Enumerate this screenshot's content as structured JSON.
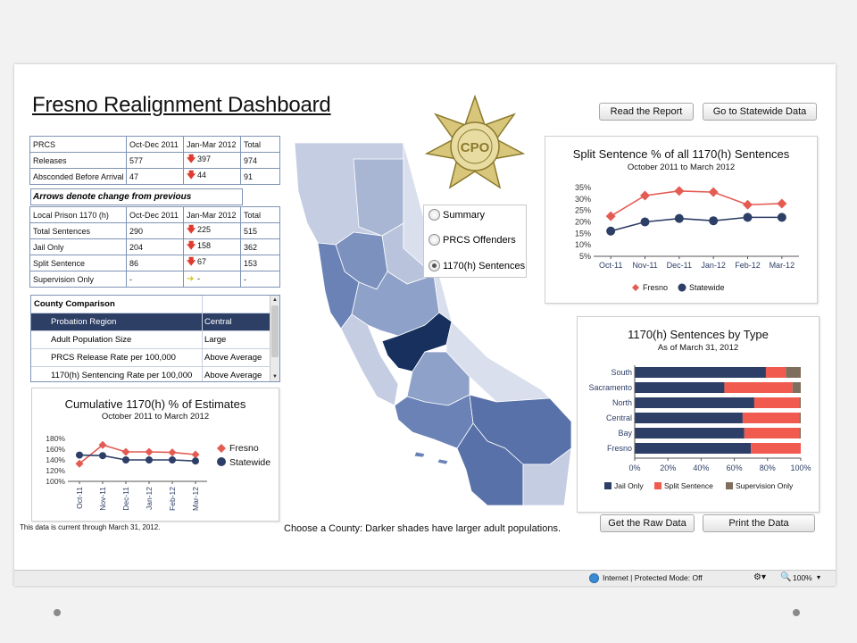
{
  "dashboard": {
    "title": "Fresno Realignment Dashboard",
    "buttons": {
      "read_report": "Read the Report",
      "statewide": "Go to Statewide Data",
      "raw_data": "Get the Raw Data",
      "print": "Print the Data"
    },
    "prcs_table": {
      "headers": [
        "PRCS",
        "Oct-Dec 2011",
        "Jan-Mar 2012",
        "Total"
      ],
      "rows": [
        {
          "label": "Releases",
          "q1": "577",
          "trend": "down",
          "q2": "397",
          "total": "974"
        },
        {
          "label": "Absconded Before Arrival",
          "q1": "47",
          "trend": "down",
          "q2": "44",
          "total": "91"
        }
      ]
    },
    "arrows_note": "Arrows denote change from previous",
    "prison_table": {
      "headers": [
        "Local Prison 1170 (h)",
        "Oct-Dec 2011",
        "Jan-Mar 2012",
        "Total"
      ],
      "rows": [
        {
          "label": "Total Sentences",
          "q1": "290",
          "trend": "down",
          "q2": "225",
          "total": "515"
        },
        {
          "label": "Jail Only",
          "q1": "204",
          "trend": "down",
          "q2": "158",
          "total": "362"
        },
        {
          "label": "Split Sentence",
          "q1": "86",
          "trend": "down",
          "q2": "67",
          "total": "153"
        },
        {
          "label": "Supervision Only",
          "q1": "-",
          "trend": "flat",
          "q2": "-",
          "total": "-"
        }
      ]
    },
    "county_comparison": {
      "header": "County Comparison",
      "rows": [
        {
          "label": "Probation Region",
          "value": "Central",
          "selected": true
        },
        {
          "label": "Adult Population Size",
          "value": "Large",
          "selected": false
        },
        {
          "label": "PRCS Release Rate per 100,000",
          "value": "Above Average",
          "selected": false
        },
        {
          "label": "1170(h) Sentencing Rate per 100,000",
          "value": "Above Average",
          "selected": false
        }
      ]
    },
    "radio_options": [
      {
        "label": "Summary",
        "checked": false
      },
      {
        "label": "PRCS Offenders",
        "checked": false
      },
      {
        "label": "1170(h) Sentences",
        "checked": true
      }
    ],
    "footnote": "This data is current through March 31, 2012.",
    "map_caption": "Choose a County: Darker shades have larger adult populations.",
    "status": {
      "zone": "Internet | Protected Mode: Off",
      "zoom": "100%"
    },
    "colors": {
      "fresno": "#e45b52",
      "statewide": "#2d3f66",
      "jail_only": "#2d3f66",
      "split_sentence": "#f05a4f",
      "supervision_only": "#7f6e5d",
      "county_darkest": "#17305e"
    }
  },
  "chart_data": [
    {
      "id": "cumulative",
      "type": "line",
      "title": "Cumulative 1170(h) % of Estimates",
      "subtitle": "October 2011 to March 2012",
      "categories": [
        "Oct-11",
        "Nov-11",
        "Dec-11",
        "Jan-12",
        "Feb-12",
        "Mar-12"
      ],
      "series": [
        {
          "name": "Fresno",
          "values": [
            133,
            168,
            155,
            155,
            154,
            150
          ]
        },
        {
          "name": "Statewide",
          "values": [
            149,
            148,
            140,
            140,
            140,
            138
          ]
        }
      ],
      "y_ticks": [
        "180%",
        "160%",
        "140%",
        "120%",
        "100%"
      ],
      "ylim": [
        100,
        180
      ],
      "legend": "right"
    },
    {
      "id": "split",
      "type": "line",
      "title": "Split Sentence % of all 1170(h) Sentences",
      "subtitle": "October 2011 to March 2012",
      "categories": [
        "Oct-11",
        "Nov-11",
        "Dec-11",
        "Jan-12",
        "Feb-12",
        "Mar-12"
      ],
      "series": [
        {
          "name": "Fresno",
          "values": [
            22.5,
            31.5,
            33.5,
            33,
            27.5,
            28
          ]
        },
        {
          "name": "Statewide",
          "values": [
            16,
            20,
            21.5,
            20.5,
            22,
            22
          ]
        }
      ],
      "y_ticks": [
        "35%",
        "30%",
        "25%",
        "20%",
        "15%",
        "10%",
        "5%"
      ],
      "ylim": [
        5,
        35
      ],
      "legend": "bottom"
    },
    {
      "id": "bytype",
      "type": "bar",
      "orientation": "horizontal-stacked-100",
      "title": "1170(h) Sentences by Type",
      "subtitle": "As of March 31, 2012",
      "categories": [
        "South",
        "Sacramento",
        "North",
        "Central",
        "Bay",
        "Fresno"
      ],
      "series": [
        {
          "name": "Jail Only",
          "values": [
            79,
            54,
            72,
            65,
            66,
            70
          ]
        },
        {
          "name": "Split Sentence",
          "values": [
            12,
            41,
            27,
            34,
            33,
            30
          ]
        },
        {
          "name": "Supervision Only",
          "values": [
            9,
            5,
            1,
            1,
            1,
            0
          ]
        }
      ],
      "x_ticks": [
        "0%",
        "20%",
        "40%",
        "60%",
        "80%",
        "100%"
      ],
      "xlim": [
        0,
        100
      ],
      "legend": "bottom"
    }
  ]
}
